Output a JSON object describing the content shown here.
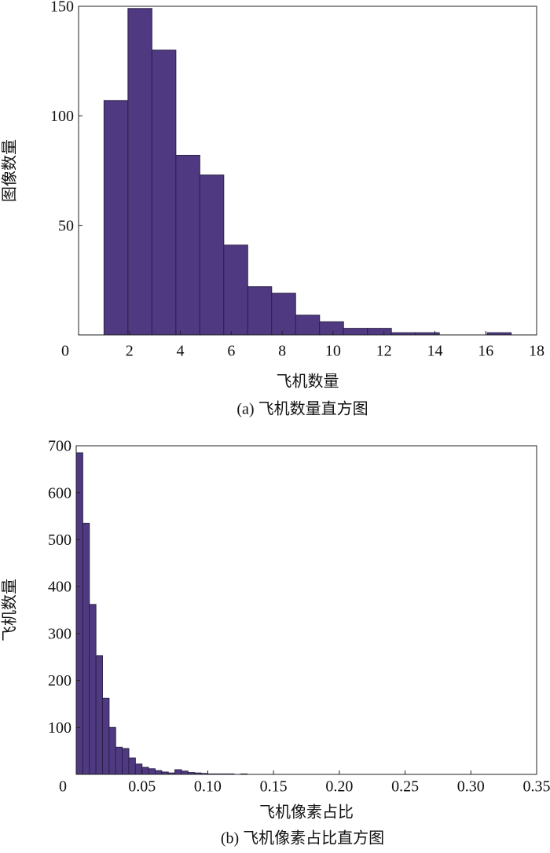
{
  "chart_data": [
    {
      "type": "histogram",
      "caption": "(a) 飞机数量直方图",
      "xlabel": "飞机数量",
      "ylabel": "图像数量",
      "bins": [
        1,
        1.941,
        2.882,
        3.824,
        4.765,
        5.706,
        6.647,
        7.588,
        8.529,
        9.471,
        10.412,
        11.353,
        12.294,
        13.235,
        14.176,
        15.118,
        16.059,
        17
      ],
      "values": [
        107,
        149,
        130,
        82,
        73,
        41,
        22,
        19,
        9,
        6,
        3,
        3,
        1,
        1,
        0,
        0,
        1
      ],
      "color": "#4f3a82",
      "xlim": [
        0,
        18
      ],
      "xticks": [
        0,
        2,
        4,
        6,
        8,
        10,
        12,
        14,
        16,
        18
      ],
      "ylim": [
        0,
        150
      ],
      "yticks": [
        50,
        100,
        150
      ]
    },
    {
      "type": "histogram",
      "caption": "(b) 飞机像素占比直方图",
      "xlabel": "飞机像素占比",
      "ylabel": "飞机数量",
      "bins": [
        0,
        0.005,
        0.01,
        0.015,
        0.02,
        0.025,
        0.03,
        0.035,
        0.04,
        0.045,
        0.05,
        0.055,
        0.06,
        0.065,
        0.07,
        0.075,
        0.08,
        0.085,
        0.09,
        0.095,
        0.1,
        0.105,
        0.11,
        0.115,
        0.12,
        0.125,
        0.13,
        0.135,
        0.14,
        0.145,
        0.15,
        0.155,
        0.16,
        0.165,
        0.17,
        0.175,
        0.18,
        0.185,
        0.19,
        0.195,
        0.2,
        0.205,
        0.21,
        0.215,
        0.22,
        0.225,
        0.23,
        0.235,
        0.24,
        0.245,
        0.25,
        0.255,
        0.26,
        0.265,
        0.27,
        0.275,
        0.28,
        0.285,
        0.29,
        0.295,
        0.3,
        0.305,
        0.31,
        0.315,
        0.32,
        0.325,
        0.33,
        0.335,
        0.34
      ],
      "values": [
        685,
        535,
        362,
        253,
        162,
        100,
        58,
        55,
        35,
        22,
        15,
        12,
        8,
        5,
        3,
        10,
        7,
        4,
        3,
        2,
        1,
        1,
        1,
        1,
        0,
        1,
        0,
        0,
        0,
        0,
        0,
        0,
        0,
        0,
        0,
        0,
        0,
        0,
        0,
        0,
        0,
        0,
        0,
        0,
        0,
        0,
        0,
        0,
        0,
        0,
        0,
        0,
        0,
        0,
        0,
        0,
        0,
        0,
        0,
        0,
        0,
        0,
        0,
        0,
        0,
        0,
        0,
        0
      ],
      "color": "#4f3a82",
      "xlim": [
        0,
        0.35
      ],
      "xticks": [
        0,
        0.05,
        {
          "value": 0.1,
          "label": "0.10"
        },
        0.15,
        {
          "value": 0.2,
          "label": "0.20"
        },
        0.25,
        {
          "value": 0.3,
          "label": "0.30"
        },
        0.35
      ],
      "ylim": [
        0,
        700
      ],
      "yticks": [
        100,
        200,
        300,
        400,
        500,
        600,
        700
      ]
    }
  ]
}
